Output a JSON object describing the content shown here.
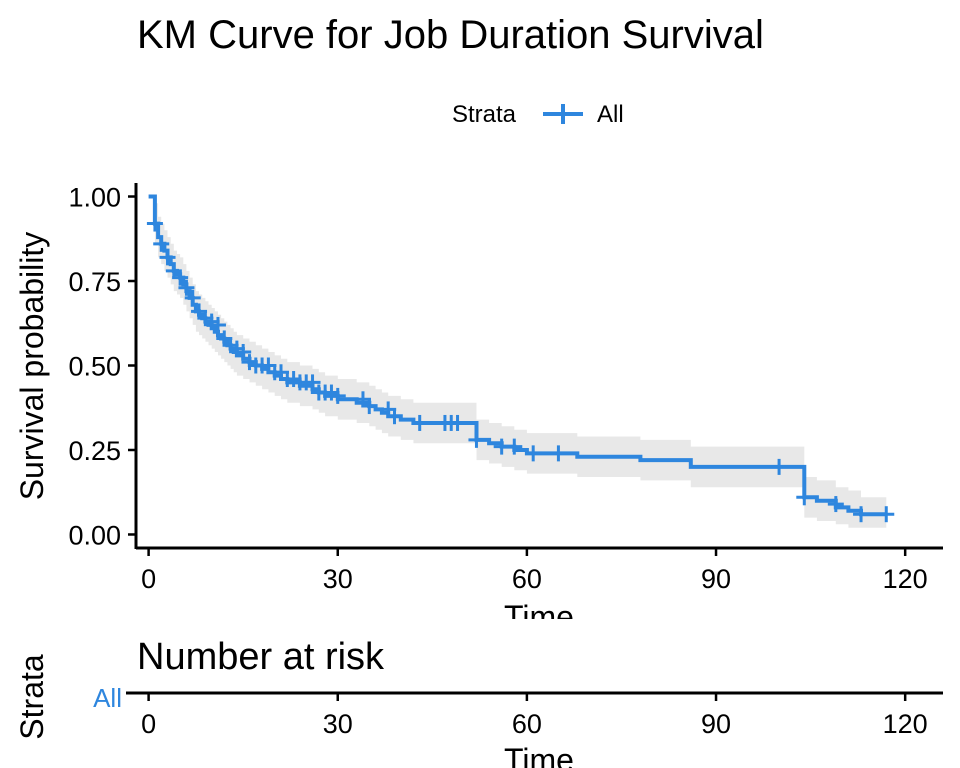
{
  "chart_data": [
    {
      "type": "line",
      "title": "KM Curve for Job Duration Survival",
      "xlabel": "Time",
      "ylabel": "Survival probability",
      "legend": {
        "title": "Strata",
        "position": "top",
        "entries": [
          "All"
        ]
      },
      "xlim": [
        -2,
        126
      ],
      "ylim": [
        -0.04,
        1.04
      ],
      "x_ticks": [
        0,
        30,
        60,
        90,
        120
      ],
      "x_tick_labels": [
        "0",
        "30",
        "60",
        "90",
        "120"
      ],
      "y_ticks": [
        0,
        0.25,
        0.5,
        0.75,
        1
      ],
      "y_tick_labels": [
        "0.00",
        "0.25",
        "0.50",
        "0.75",
        "1.00"
      ],
      "grid": false,
      "series": [
        {
          "name": "All",
          "color": "#2E86DE",
          "step": true,
          "x": [
            0,
            1,
            1.5,
            2,
            2.5,
            3,
            3.5,
            4,
            4.5,
            5,
            5.5,
            6,
            6.5,
            7,
            7.5,
            8,
            8.5,
            9,
            9.5,
            10,
            10.5,
            11,
            11.5,
            12,
            12.5,
            13,
            13.5,
            14,
            15,
            16,
            17,
            18,
            19,
            20,
            21,
            22,
            23,
            24,
            25,
            26,
            27,
            28,
            29,
            30,
            31,
            33,
            35,
            36,
            37,
            38,
            40,
            42,
            44,
            46,
            48,
            50,
            52,
            54,
            56,
            58,
            60,
            62,
            65,
            68,
            70,
            78,
            86,
            100,
            104,
            106,
            109,
            111,
            113,
            117
          ],
          "y": [
            1.0,
            0.92,
            0.88,
            0.86,
            0.84,
            0.82,
            0.8,
            0.78,
            0.77,
            0.76,
            0.74,
            0.72,
            0.7,
            0.68,
            0.66,
            0.65,
            0.64,
            0.63,
            0.62,
            0.61,
            0.6,
            0.59,
            0.58,
            0.57,
            0.56,
            0.55,
            0.54,
            0.53,
            0.52,
            0.51,
            0.5,
            0.49,
            0.48,
            0.47,
            0.46,
            0.45,
            0.45,
            0.44,
            0.44,
            0.43,
            0.42,
            0.41,
            0.41,
            0.4,
            0.4,
            0.39,
            0.38,
            0.37,
            0.36,
            0.35,
            0.34,
            0.33,
            0.33,
            0.33,
            0.33,
            0.33,
            0.28,
            0.27,
            0.26,
            0.25,
            0.24,
            0.24,
            0.24,
            0.23,
            0.23,
            0.22,
            0.2,
            0.2,
            0.11,
            0.1,
            0.08,
            0.07,
            0.06,
            0.06
          ],
          "lower": [
            1.0,
            0.86,
            0.82,
            0.8,
            0.78,
            0.76,
            0.74,
            0.72,
            0.71,
            0.7,
            0.68,
            0.66,
            0.64,
            0.62,
            0.6,
            0.59,
            0.58,
            0.57,
            0.56,
            0.55,
            0.54,
            0.53,
            0.52,
            0.51,
            0.5,
            0.49,
            0.48,
            0.47,
            0.46,
            0.45,
            0.44,
            0.43,
            0.42,
            0.41,
            0.4,
            0.39,
            0.39,
            0.38,
            0.38,
            0.37,
            0.36,
            0.35,
            0.35,
            0.34,
            0.34,
            0.33,
            0.32,
            0.31,
            0.3,
            0.29,
            0.28,
            0.27,
            0.27,
            0.27,
            0.27,
            0.27,
            0.22,
            0.21,
            0.2,
            0.19,
            0.18,
            0.18,
            0.18,
            0.17,
            0.17,
            0.16,
            0.14,
            0.14,
            0.05,
            0.04,
            0.03,
            0.02,
            0.02,
            0.02
          ],
          "upper": [
            1.0,
            0.98,
            0.94,
            0.92,
            0.9,
            0.88,
            0.86,
            0.84,
            0.83,
            0.82,
            0.8,
            0.78,
            0.76,
            0.74,
            0.72,
            0.71,
            0.7,
            0.69,
            0.68,
            0.67,
            0.66,
            0.65,
            0.64,
            0.63,
            0.62,
            0.61,
            0.6,
            0.59,
            0.58,
            0.57,
            0.56,
            0.55,
            0.54,
            0.53,
            0.52,
            0.51,
            0.51,
            0.5,
            0.5,
            0.49,
            0.48,
            0.47,
            0.47,
            0.46,
            0.46,
            0.45,
            0.44,
            0.43,
            0.42,
            0.41,
            0.4,
            0.39,
            0.39,
            0.39,
            0.39,
            0.39,
            0.34,
            0.33,
            0.32,
            0.31,
            0.3,
            0.3,
            0.3,
            0.29,
            0.29,
            0.28,
            0.26,
            0.26,
            0.17,
            0.16,
            0.14,
            0.13,
            0.11,
            0.11
          ],
          "censored": [
            [
              1,
              0.92
            ],
            [
              2,
              0.86
            ],
            [
              3,
              0.82
            ],
            [
              4,
              0.78
            ],
            [
              5,
              0.76
            ],
            [
              6,
              0.73
            ],
            [
              7,
              0.7
            ],
            [
              8,
              0.66
            ],
            [
              9,
              0.64
            ],
            [
              10,
              0.63
            ],
            [
              11,
              0.62
            ],
            [
              12,
              0.58
            ],
            [
              13,
              0.56
            ],
            [
              14,
              0.55
            ],
            [
              15,
              0.54
            ],
            [
              16,
              0.51
            ],
            [
              17,
              0.5
            ],
            [
              18,
              0.5
            ],
            [
              19,
              0.5
            ],
            [
              20,
              0.48
            ],
            [
              21,
              0.48
            ],
            [
              22,
              0.46
            ],
            [
              23,
              0.46
            ],
            [
              24,
              0.45
            ],
            [
              25,
              0.45
            ],
            [
              26,
              0.45
            ],
            [
              27,
              0.42
            ],
            [
              28,
              0.42
            ],
            [
              29,
              0.42
            ],
            [
              30,
              0.41
            ],
            [
              34,
              0.4
            ],
            [
              35,
              0.38
            ],
            [
              38,
              0.37
            ],
            [
              39,
              0.35
            ],
            [
              43,
              0.33
            ],
            [
              47,
              0.33
            ],
            [
              48,
              0.33
            ],
            [
              49,
              0.33
            ],
            [
              52,
              0.28
            ],
            [
              56,
              0.26
            ],
            [
              58,
              0.26
            ],
            [
              61,
              0.24
            ],
            [
              65,
              0.24
            ],
            [
              100,
              0.2
            ],
            [
              104,
              0.11
            ],
            [
              109,
              0.09
            ],
            [
              113,
              0.06
            ],
            [
              117,
              0.06
            ]
          ]
        }
      ]
    },
    {
      "type": "table",
      "title": "Number at risk",
      "ylabel": "Strata",
      "xlabel": "Time",
      "rows": [
        "All"
      ],
      "row_colors": [
        "#2E86DE"
      ],
      "x_ticks": [
        0,
        30,
        60,
        90,
        120
      ],
      "x_tick_labels": [
        "0",
        "30",
        "60",
        "90",
        "120"
      ]
    }
  ]
}
